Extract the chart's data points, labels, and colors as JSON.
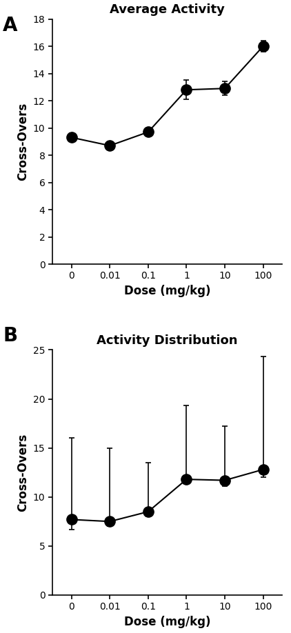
{
  "panel_A": {
    "title": "Average Activity",
    "x_positions": [
      0,
      1,
      2,
      3,
      4,
      5
    ],
    "x_labels": [
      "0",
      "0.01",
      "0.1",
      "1",
      "10",
      "100"
    ],
    "y_values": [
      9.3,
      8.7,
      9.7,
      12.8,
      12.9,
      16.0
    ],
    "y_err": [
      0.3,
      0.3,
      0.3,
      0.7,
      0.5,
      0.4
    ],
    "ylabel": "Cross-Overs",
    "xlabel": "Dose (mg/kg)",
    "ylim": [
      0,
      18
    ],
    "yticks": [
      0,
      2,
      4,
      6,
      8,
      10,
      12,
      14,
      16,
      18
    ]
  },
  "panel_B": {
    "title": "Activity Distribution",
    "x_positions": [
      0,
      1,
      2,
      3,
      4,
      5
    ],
    "x_labels": [
      "0",
      "0.01",
      "0.1",
      "1",
      "10",
      "100"
    ],
    "y_values": [
      7.7,
      7.5,
      8.5,
      11.8,
      11.7,
      12.8
    ],
    "y_err_lower": [
      1.0,
      0.5,
      0.5,
      0.4,
      0.6,
      0.8
    ],
    "y_err_upper": [
      8.3,
      7.5,
      5.0,
      7.5,
      5.5,
      11.5
    ],
    "ylabel": "Cross-Overs",
    "xlabel": "Dose (mg/kg)",
    "ylim": [
      0,
      25
    ],
    "yticks": [
      0,
      5,
      10,
      15,
      20,
      25
    ]
  },
  "marker_size": 11,
  "line_color": "black",
  "marker_color": "black",
  "capsize": 3,
  "label_A": "A",
  "label_B": "B",
  "label_fontsize": 20,
  "title_fontsize": 13,
  "axis_label_fontsize": 12,
  "tick_fontsize": 10
}
